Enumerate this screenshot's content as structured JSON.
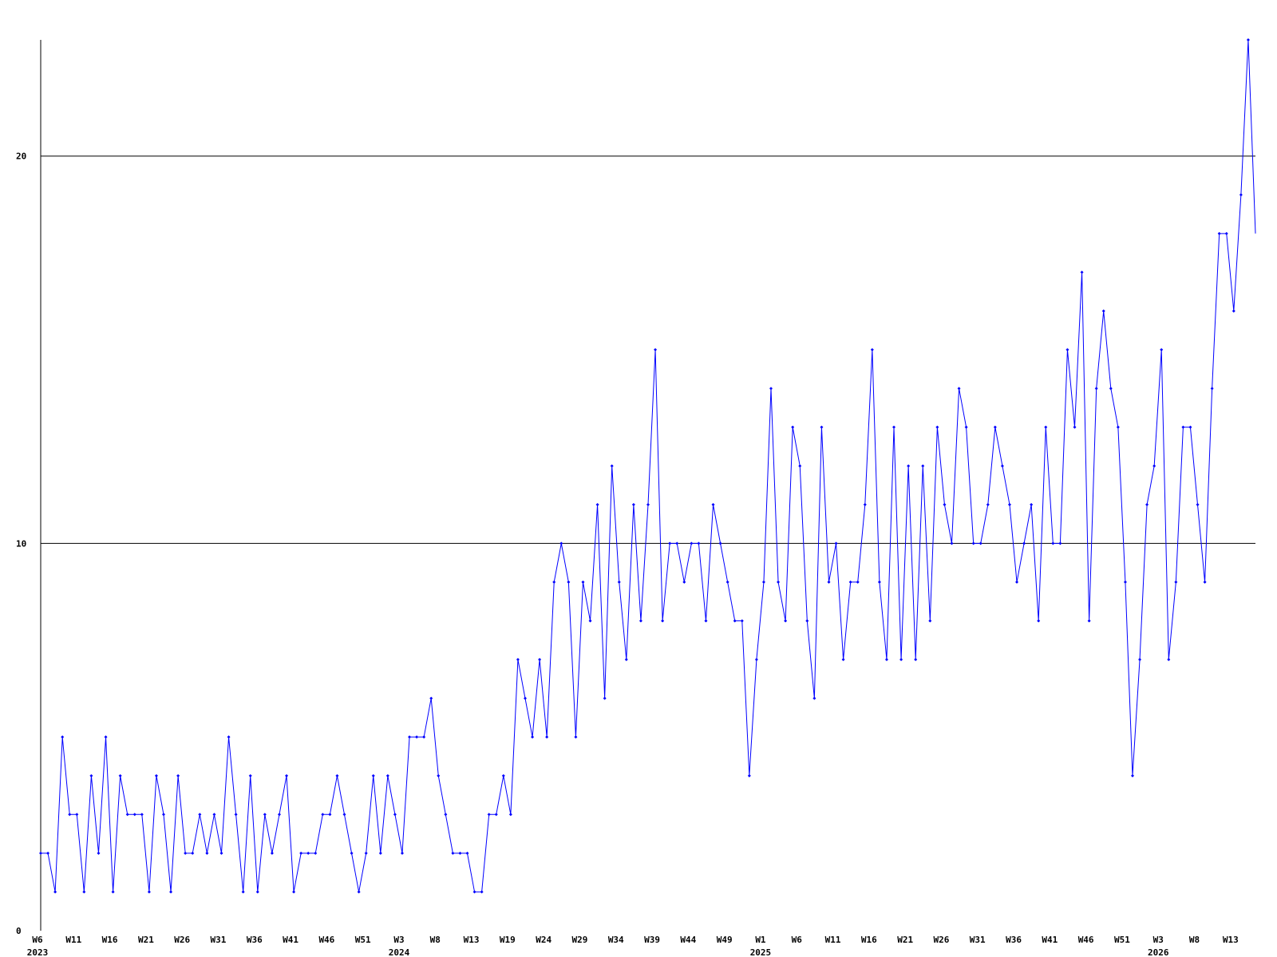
{
  "chart_data": {
    "type": "line",
    "categories": [
      "W6",
      null,
      null,
      null,
      null,
      "W11",
      null,
      null,
      null,
      null,
      "W16",
      null,
      null,
      null,
      null,
      "W21",
      null,
      null,
      null,
      null,
      "W26",
      null,
      null,
      null,
      null,
      "W31",
      null,
      null,
      null,
      null,
      "W36",
      null,
      null,
      null,
      null,
      "W41",
      null,
      null,
      null,
      null,
      "W46",
      null,
      null,
      null,
      null,
      "W51",
      null,
      null,
      null,
      null,
      "W3",
      null,
      null,
      null,
      null,
      "W8",
      null,
      null,
      null,
      null,
      "W13",
      null,
      null,
      null,
      null,
      "W19",
      null,
      null,
      null,
      null,
      "W24",
      null,
      null,
      null,
      null,
      "W29",
      null,
      null,
      null,
      null,
      "W34",
      null,
      null,
      null,
      null,
      "W39",
      null,
      null,
      null,
      null,
      "W44",
      null,
      null,
      null,
      null,
      "W49",
      null,
      null,
      null,
      null,
      "W1",
      null,
      null,
      null,
      null,
      "W6",
      null,
      null,
      null,
      null,
      "W11",
      null,
      null,
      null,
      null,
      "W16",
      null,
      null,
      null,
      null,
      "W21",
      null,
      null,
      null,
      null,
      "W26",
      null,
      null,
      null,
      null,
      "W31",
      null,
      null,
      null,
      null,
      "W36",
      null,
      null,
      null,
      null,
      "W41",
      null,
      null,
      null,
      null,
      "W46",
      null,
      null,
      null,
      null,
      "W51",
      null,
      null,
      null,
      null,
      "W3",
      null,
      null,
      null,
      null,
      "W8",
      null,
      null,
      null,
      null,
      "W13",
      null,
      null,
      null
    ],
    "year_labels": [
      "2023",
      "2024",
      "2025",
      "2026"
    ],
    "series": [
      {
        "color": "#0000ff",
        "values": [
          2,
          2,
          1,
          5,
          3,
          3,
          1,
          4,
          2,
          5,
          1,
          4,
          3,
          3,
          3,
          1,
          4,
          3,
          1,
          4,
          2,
          2,
          3,
          2,
          3,
          2,
          5,
          3,
          1,
          4,
          1,
          3,
          2,
          3,
          4,
          1,
          2,
          2,
          2,
          3,
          3,
          4,
          3,
          2,
          1,
          2,
          4,
          2,
          4,
          3,
          2,
          5,
          5,
          5,
          6,
          4,
          3,
          2,
          2,
          2,
          1,
          1,
          3,
          3,
          4,
          3,
          7,
          6,
          5,
          7,
          5,
          9,
          10,
          9,
          5,
          9,
          8,
          11,
          6,
          12,
          9,
          7,
          11,
          8,
          11,
          15,
          8,
          10,
          10,
          9,
          10,
          10,
          8,
          11,
          10,
          9,
          8,
          8,
          4,
          7,
          9,
          14,
          9,
          8,
          13,
          12,
          8,
          6,
          13,
          9,
          10,
          7,
          9,
          9,
          11,
          15,
          9,
          7,
          13,
          7,
          12,
          7,
          12,
          8,
          13,
          11,
          10,
          14,
          13,
          10,
          10,
          11,
          13,
          12,
          11,
          9,
          10,
          11,
          8,
          13,
          10,
          10,
          15,
          13,
          17,
          8,
          14,
          16,
          14,
          13,
          9,
          4,
          7,
          11,
          12,
          15,
          7,
          9,
          13,
          13,
          11,
          9,
          14,
          18,
          18,
          16,
          19,
          23,
          18
        ]
      }
    ],
    "ylim": [
      0,
      23
    ],
    "yticks": [
      0,
      10,
      20
    ],
    "grid": true
  }
}
